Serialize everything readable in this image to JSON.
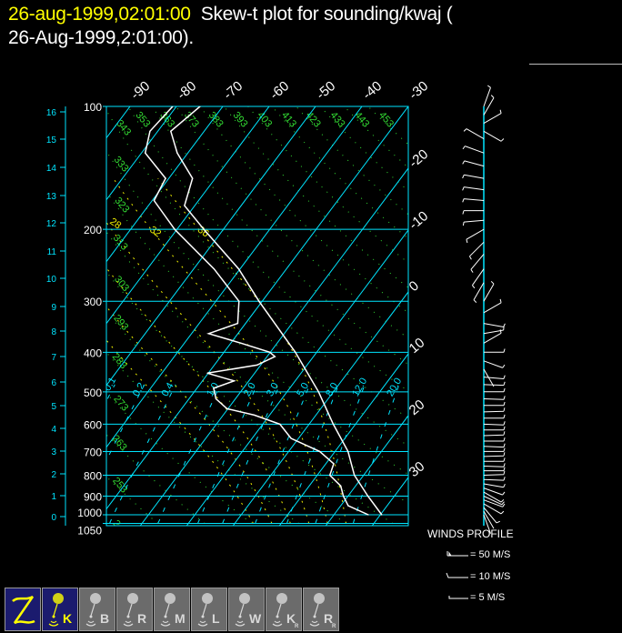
{
  "header": {
    "date": "26-aug-1999,02:01:00",
    "title_line1": "Skew-t plot for sounding/kwaj (",
    "title_line2": "26-Aug-1999,2:01:00)."
  },
  "colors": {
    "background": "#000000",
    "isotherm": "#00e5ff",
    "dry_adiabat": "#33dd33",
    "moist_adiabat": "#eeee00",
    "mixing_ratio": "#00e5ff",
    "sounding": "#ffffff",
    "date": "#ffff00"
  },
  "chart_data": {
    "type": "line",
    "title": "Skew-t plot for sounding/kwaj ( 26-Aug-1999,2:01:00).",
    "pressure_ticks": [
      "100",
      "200",
      "300",
      "400",
      "500",
      "600",
      "700",
      "800",
      "900",
      "1000",
      "1050"
    ],
    "pressure_values": [
      100,
      200,
      300,
      400,
      500,
      600,
      700,
      800,
      900,
      1000,
      1050
    ],
    "height_ticks_km": [
      "0",
      "1",
      "2",
      "3",
      "4",
      "5",
      "6",
      "7",
      "8",
      "9",
      "10",
      "11",
      "12",
      "13",
      "14",
      "15",
      "16"
    ],
    "isotherm_top_labels": [
      "-90",
      "-80",
      "-70",
      "-60",
      "-50",
      "-40",
      "-30"
    ],
    "isotherm_right_labels": [
      "-20",
      "-10",
      "0",
      "10",
      "20",
      "30"
    ],
    "dry_adiabat_labels": [
      "243",
      "253",
      "263",
      "273",
      "283",
      "293",
      "303",
      "313",
      "323",
      "333",
      "343",
      "353",
      "363",
      "373",
      "383",
      "393",
      "403",
      "413",
      "423",
      "433",
      "443",
      "453"
    ],
    "moist_adiabat_labels": [
      "16",
      "20",
      "24",
      "28",
      "32",
      "36"
    ],
    "mixing_ratio_labels": [
      "0.1",
      "0.2",
      "0.4",
      "1.0",
      "2.0",
      "3.0",
      "5.0",
      "8.0",
      "12.0",
      "20.0"
    ],
    "ylim_hpa": [
      1050,
      100
    ],
    "y_scale": "log-pressure",
    "x_skewed": true,
    "series": [
      {
        "key": "temperature",
        "points": [
          [
            1000,
            30.3
          ],
          [
            900,
            24.3
          ],
          [
            800,
            18.0
          ],
          [
            700,
            12.8
          ],
          [
            600,
            5.2
          ],
          [
            500,
            -3.2
          ],
          [
            400,
            -14.6
          ],
          [
            300,
            -30.7
          ],
          [
            250,
            -40.3
          ],
          [
            200,
            -54.2
          ],
          [
            175,
            -62.2
          ],
          [
            150,
            -64.9
          ],
          [
            130,
            -72.3
          ],
          [
            115,
            -77.2
          ],
          [
            100,
            -74.9
          ]
        ]
      },
      {
        "key": "dewpoint",
        "points": [
          [
            1000,
            27.4
          ],
          [
            950,
            21.6
          ],
          [
            900,
            19.0
          ],
          [
            850,
            16.8
          ],
          [
            800,
            12.7
          ],
          [
            750,
            11.7
          ],
          [
            700,
            6.7
          ],
          [
            650,
            -1.6
          ],
          [
            600,
            -6.3
          ],
          [
            570,
            -13.3
          ],
          [
            550,
            -20.2
          ],
          [
            520,
            -24.2
          ],
          [
            490,
            -26.4
          ],
          [
            470,
            -23.2
          ],
          [
            450,
            -30.2
          ],
          [
            430,
            -20.8
          ],
          [
            410,
            -18.3
          ],
          [
            400,
            -20.1
          ],
          [
            380,
            -27.8
          ],
          [
            360,
            -36.3
          ],
          [
            340,
            -31.7
          ],
          [
            300,
            -35.0
          ],
          [
            250,
            -45.6
          ],
          [
            200,
            -60.5
          ],
          [
            170,
            -69.6
          ],
          [
            150,
            -70.7
          ],
          [
            130,
            -79.2
          ],
          [
            115,
            -81.7
          ],
          [
            100,
            -80.8
          ]
        ]
      }
    ],
    "winds": [
      [
        100,
        20,
        8
      ],
      [
        105,
        30,
        8
      ],
      [
        110,
        60,
        12
      ],
      [
        115,
        120,
        10
      ],
      [
        120,
        300,
        12
      ],
      [
        130,
        290,
        14
      ],
      [
        140,
        285,
        16
      ],
      [
        150,
        280,
        18
      ],
      [
        160,
        278,
        20
      ],
      [
        170,
        275,
        20
      ],
      [
        180,
        270,
        22
      ],
      [
        190,
        265,
        18
      ],
      [
        200,
        240,
        15
      ],
      [
        215,
        225,
        14
      ],
      [
        230,
        220,
        14
      ],
      [
        250,
        215,
        12
      ],
      [
        270,
        210,
        10
      ],
      [
        300,
        30,
        8
      ],
      [
        320,
        60,
        10
      ],
      [
        340,
        100,
        10
      ],
      [
        360,
        80,
        10
      ],
      [
        380,
        60,
        10
      ],
      [
        400,
        90,
        10
      ],
      [
        420,
        110,
        10
      ],
      [
        440,
        150,
        6
      ],
      [
        460,
        95,
        10
      ],
      [
        480,
        92,
        10
      ],
      [
        500,
        90,
        10
      ],
      [
        520,
        92,
        10
      ],
      [
        540,
        90,
        10
      ],
      [
        560,
        88,
        10
      ],
      [
        580,
        90,
        10
      ],
      [
        600,
        92,
        10
      ],
      [
        620,
        90,
        10
      ],
      [
        640,
        88,
        10
      ],
      [
        660,
        90,
        10
      ],
      [
        680,
        92,
        10
      ],
      [
        700,
        90,
        10
      ],
      [
        720,
        88,
        10
      ],
      [
        740,
        90,
        10
      ],
      [
        760,
        92,
        10
      ],
      [
        780,
        90,
        10
      ],
      [
        800,
        88,
        10
      ],
      [
        820,
        92,
        12
      ],
      [
        840,
        100,
        12
      ],
      [
        860,
        110,
        12
      ],
      [
        880,
        120,
        10
      ],
      [
        900,
        115,
        10
      ],
      [
        920,
        110,
        10
      ],
      [
        940,
        120,
        8
      ],
      [
        960,
        140,
        8
      ],
      [
        980,
        150,
        6
      ],
      [
        1000,
        160,
        6
      ]
    ]
  },
  "winds_legend": {
    "title": "WINDS PROFILE",
    "items": [
      "= 50 M/S",
      "= 10 M/S",
      "= 5 M/S"
    ]
  },
  "toolbar": {
    "buttons": [
      {
        "icon": "zoom-z-icon",
        "label": "",
        "sub": "",
        "active": true
      },
      {
        "icon": "balloon-icon",
        "label": "K",
        "sub": "",
        "active": true
      },
      {
        "icon": "balloon-icon",
        "label": "B",
        "sub": "",
        "active": false
      },
      {
        "icon": "balloon-icon",
        "label": "R",
        "sub": "",
        "active": false
      },
      {
        "icon": "balloon-icon",
        "label": "M",
        "sub": "",
        "active": false
      },
      {
        "icon": "balloon-icon",
        "label": "L",
        "sub": "",
        "active": false
      },
      {
        "icon": "balloon-icon",
        "label": "W",
        "sub": "",
        "active": false
      },
      {
        "icon": "balloon-icon",
        "label": "K",
        "sub": "R",
        "active": false
      },
      {
        "icon": "balloon-icon",
        "label": "R",
        "sub": "R",
        "active": false
      }
    ]
  }
}
